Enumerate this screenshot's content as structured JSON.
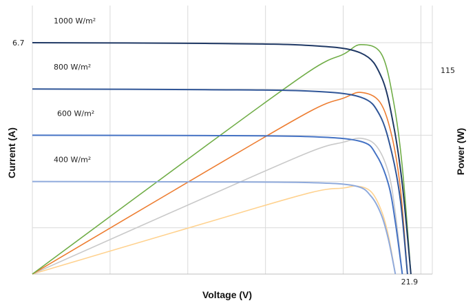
{
  "chart_data": {
    "type": "line",
    "title": "",
    "xlabel": "Voltage (V)",
    "ylabel_left": "Current (A)",
    "ylabel_right": "Power (W)",
    "xlim": [
      0,
      21.9
    ],
    "ylim_left": [
      0,
      6.7
    ],
    "ylim_right": [
      0,
      115
    ],
    "x_tick_labels": [
      "21.9"
    ],
    "left_tick_labels": [
      "6.7"
    ],
    "right_tick_labels": [
      "115"
    ],
    "grid": true,
    "irradiance_labels": [
      {
        "text": "1000 W/m²"
      },
      {
        "text": "800 W/m²"
      },
      {
        "text": "600 W/m²"
      },
      {
        "text": "400 W/m²"
      }
    ],
    "current_series": [
      {
        "name": "1000 W/m²",
        "color": "#1f3864",
        "isc": 6.7,
        "voc": 21.9,
        "points": [
          [
            0,
            6.7
          ],
          [
            10,
            6.68
          ],
          [
            16,
            6.62
          ],
          [
            19,
            6.4
          ],
          [
            20.2,
            5.7
          ],
          [
            20.9,
            4.3
          ],
          [
            21.4,
            2.6
          ],
          [
            21.9,
            0
          ]
        ]
      },
      {
        "name": "800 W/m²",
        "color": "#2f5597",
        "isc": 5.36,
        "voc": 21.7,
        "points": [
          [
            0,
            5.36
          ],
          [
            10,
            5.34
          ],
          [
            16,
            5.3
          ],
          [
            19,
            5.12
          ],
          [
            20.1,
            4.6
          ],
          [
            20.8,
            3.5
          ],
          [
            21.3,
            2.1
          ],
          [
            21.7,
            0
          ]
        ]
      },
      {
        "name": "600 W/m²",
        "color": "#4472c4",
        "isc": 4.02,
        "voc": 21.4,
        "points": [
          [
            0,
            4.02
          ],
          [
            10,
            4.01
          ],
          [
            16,
            3.98
          ],
          [
            19,
            3.84
          ],
          [
            19.9,
            3.45
          ],
          [
            20.6,
            2.6
          ],
          [
            21.0,
            1.5
          ],
          [
            21.4,
            0
          ]
        ]
      },
      {
        "name": "400 W/m²",
        "color": "#8faadc",
        "isc": 2.68,
        "voc": 21.0,
        "points": [
          [
            0,
            2.68
          ],
          [
            10,
            2.67
          ],
          [
            16,
            2.65
          ],
          [
            18.7,
            2.55
          ],
          [
            19.6,
            2.25
          ],
          [
            20.2,
            1.7
          ],
          [
            20.6,
            1.0
          ],
          [
            21.0,
            0
          ]
        ]
      }
    ],
    "power_series": [
      {
        "name": "1000 W/m²",
        "color": "#70ad47",
        "points": [
          [
            0,
            0
          ],
          [
            10,
            66.8
          ],
          [
            16,
            105.9
          ],
          [
            18,
            115
          ],
          [
            19,
            120
          ],
          [
            20.2,
            115
          ],
          [
            20.9,
            90
          ],
          [
            21.4,
            56
          ],
          [
            21.9,
            0
          ]
        ]
      },
      {
        "name": "800 W/m²",
        "color": "#ed7d31",
        "points": [
          [
            0,
            0
          ],
          [
            10,
            53.4
          ],
          [
            16,
            84.8
          ],
          [
            18,
            92
          ],
          [
            19,
            95
          ],
          [
            20.1,
            90
          ],
          [
            20.8,
            72
          ],
          [
            21.3,
            44
          ],
          [
            21.7,
            0
          ]
        ]
      },
      {
        "name": "600 W/m²",
        "color": "#c9c9c9",
        "points": [
          [
            0,
            0
          ],
          [
            10,
            40.1
          ],
          [
            16,
            63.7
          ],
          [
            18,
            69
          ],
          [
            19,
            71
          ],
          [
            19.9,
            67
          ],
          [
            20.6,
            53
          ],
          [
            21.0,
            32
          ],
          [
            21.4,
            0
          ]
        ]
      },
      {
        "name": "400 W/m²",
        "color": "#ffd28f",
        "points": [
          [
            0,
            0
          ],
          [
            10,
            26.7
          ],
          [
            16,
            42.4
          ],
          [
            18,
            45
          ],
          [
            18.8,
            46
          ],
          [
            19.6,
            43
          ],
          [
            20.2,
            33
          ],
          [
            20.6,
            20
          ],
          [
            21.0,
            0
          ]
        ]
      }
    ]
  }
}
